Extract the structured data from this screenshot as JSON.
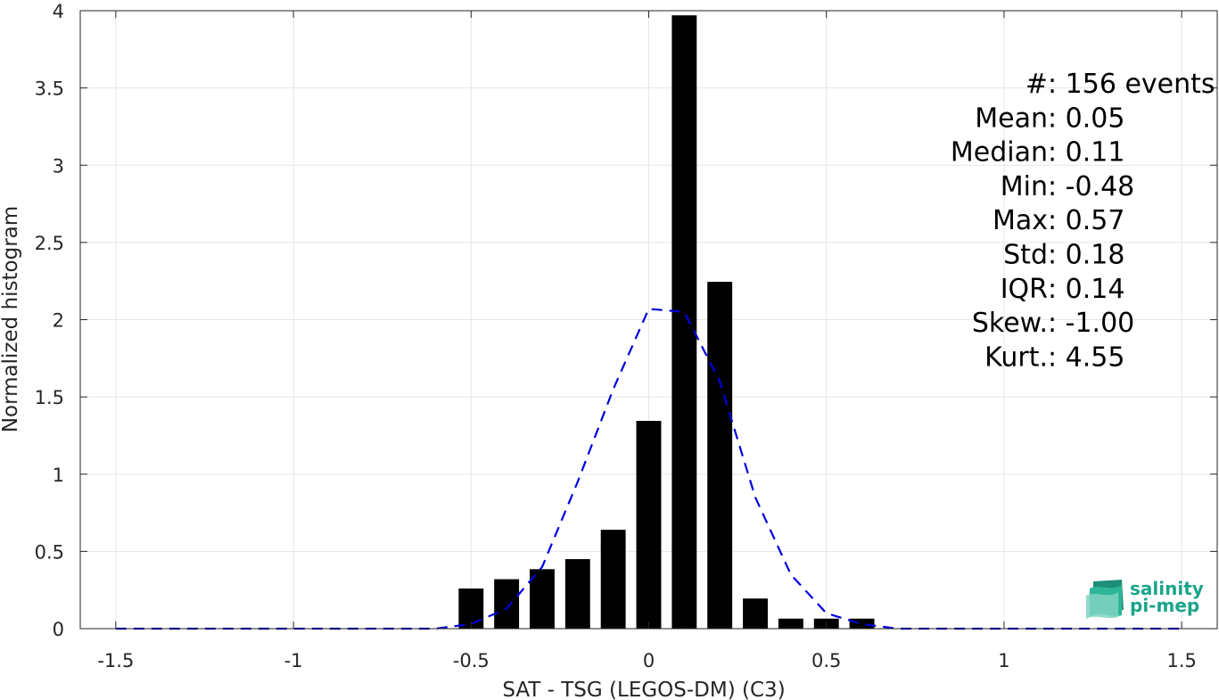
{
  "chart_data": {
    "type": "bar",
    "xlabel": "SAT - TSG (LEGOS-DM) (C3)",
    "ylabel": "Normalized histogram",
    "xlim": [
      -1.6,
      1.6
    ],
    "ylim": [
      0,
      4
    ],
    "grid": true,
    "xticks": [
      -1.5,
      -1,
      -0.5,
      0,
      0.5,
      1,
      1.5
    ],
    "xtick_labels": [
      "-1.5",
      "-1",
      "-0.5",
      "0",
      "0.5",
      "1",
      "1.5"
    ],
    "yticks": [
      0,
      0.5,
      1,
      1.5,
      2,
      2.5,
      3,
      3.5,
      4
    ],
    "ytick_labels": [
      "0",
      "0.5",
      "1",
      "1.5",
      "2",
      "2.5",
      "3",
      "3.5",
      "4"
    ],
    "bar_width": 0.07,
    "bars": {
      "x": [
        -0.5,
        -0.4,
        -0.3,
        -0.2,
        -0.1,
        0.0,
        0.1,
        0.2,
        0.3,
        0.4,
        0.5,
        0.6
      ],
      "values": [
        0.26,
        0.32,
        0.385,
        0.45,
        0.64,
        1.345,
        3.97,
        2.245,
        0.195,
        0.065,
        0.065,
        0.065
      ],
      "color": "#000000"
    },
    "fit_curve": {
      "style": "dashed",
      "color": "#0000dd",
      "x": [
        -1.5,
        -1.4,
        -1.3,
        -1.2,
        -1.1,
        -1.0,
        -0.9,
        -0.8,
        -0.7,
        -0.6,
        -0.5,
        -0.4,
        -0.3,
        -0.2,
        -0.1,
        0.0,
        0.1,
        0.2,
        0.3,
        0.4,
        0.5,
        0.6,
        0.7,
        0.8,
        0.9,
        1.0,
        1.1,
        1.2,
        1.3,
        1.4,
        1.5
      ],
      "y": [
        0,
        0,
        0,
        0,
        0,
        0,
        0,
        0,
        0,
        0,
        0.03,
        0.13,
        0.4,
        0.95,
        1.55,
        2.07,
        2.05,
        1.6,
        0.85,
        0.35,
        0.1,
        0.03,
        0,
        0,
        0,
        0,
        0,
        0,
        0,
        0,
        0
      ]
    },
    "annotations": [
      {
        "label": "#",
        "sep": " : ",
        "value": "156 events"
      },
      {
        "label": "Mean",
        "sep": " : ",
        "value": "0.05"
      },
      {
        "label": "Median",
        "sep": " : ",
        "value": "0.11"
      },
      {
        "label": "Min",
        "sep": " : ",
        "value": "-0.48"
      },
      {
        "label": "Max",
        "sep": " : ",
        "value": "0.57"
      },
      {
        "label": "Std",
        "sep": " : ",
        "value": "0.18"
      },
      {
        "label": "IQR",
        "sep": " : ",
        "value": "0.14"
      },
      {
        "label": "Skew.",
        "sep": " : ",
        "value": "-1.00"
      },
      {
        "label": "Kurt.",
        "sep": " : ",
        "value": "4.55"
      }
    ]
  },
  "logo": {
    "line1": "salinity",
    "line2": "pi-mep",
    "color": "#1aa58a"
  }
}
